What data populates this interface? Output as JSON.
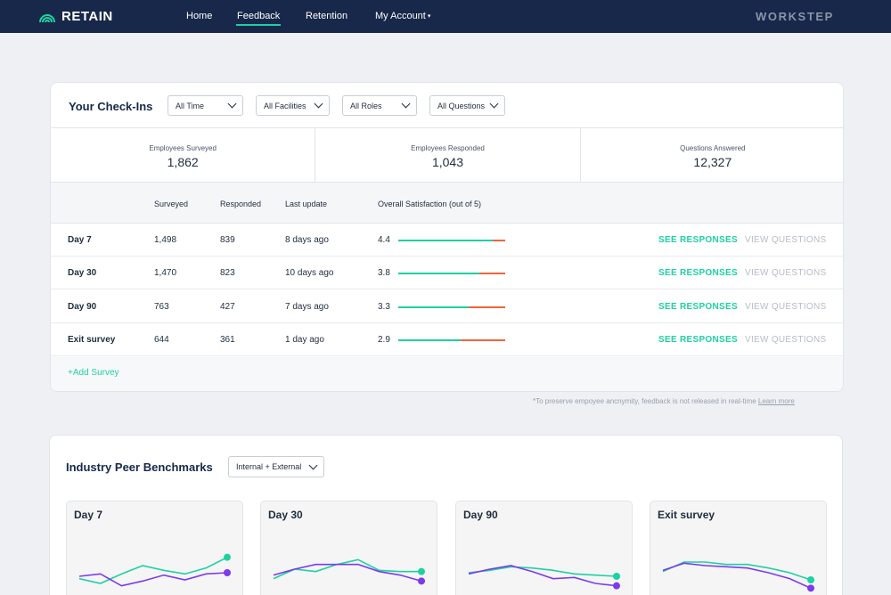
{
  "nav": {
    "brand": "RETAIN",
    "links": [
      "Home",
      "Feedback",
      "Retention",
      "My Account"
    ],
    "active": "Feedback",
    "partner": "WORKSTEP"
  },
  "checkins": {
    "title": "Your Check-Ins",
    "filters": [
      "All Time",
      "All Facilities",
      "All Roles",
      "All Questions"
    ],
    "stats": [
      {
        "label": "Employees Surveyed",
        "value": "1,862"
      },
      {
        "label": "Employees Responded",
        "value": "1,043"
      },
      {
        "label": "Questions Answered",
        "value": "12,327"
      }
    ],
    "columns": [
      "Surveyed",
      "Responded",
      "Last update",
      "Overall Satisfaction (out of 5)"
    ],
    "rows": [
      {
        "name": "Day 7",
        "surveyed": "1,498",
        "responded": "839",
        "updated": "8 days ago",
        "score": "4.4",
        "score_value": 4.4
      },
      {
        "name": "Day 30",
        "surveyed": "1,470",
        "responded": "823",
        "updated": "10 days ago",
        "score": "3.8",
        "score_value": 3.8
      },
      {
        "name": "Day 90",
        "surveyed": "763",
        "responded": "427",
        "updated": "7 days ago",
        "score": "3.3",
        "score_value": 3.3
      },
      {
        "name": "Exit survey",
        "surveyed": "644",
        "responded": "361",
        "updated": "1 day ago",
        "score": "2.9",
        "score_value": 2.9
      }
    ],
    "see_responses": "SEE RESPONSES",
    "view_questions": "VIEW QUESTIONS",
    "add_survey": "+Add Survey",
    "footnote": "*To preserve empoyee ancnymity, feedback is not released in real-time",
    "footnote_link": "Learn more"
  },
  "benchmarks": {
    "title": "Industry Peer Benchmarks",
    "filter": "Internal + External",
    "colors": {
      "internal": "#1dd1a1",
      "external": "#7c3aed",
      "satisfied": "#1dd1a1",
      "unsatisfied": "#f0643c"
    },
    "charts": [
      {
        "title": "Day 7",
        "green": [
          2.0,
          1.6,
          2.4,
          3.1,
          2.7,
          2.4,
          2.9,
          3.8
        ],
        "purple": [
          2.2,
          2.4,
          1.4,
          1.8,
          2.3,
          1.9,
          2.4,
          2.5
        ]
      },
      {
        "title": "Day 30",
        "green": [
          2.0,
          2.8,
          2.6,
          3.2,
          3.6,
          2.7,
          2.6,
          2.6
        ],
        "purple": [
          2.3,
          2.8,
          3.2,
          3.2,
          3.2,
          2.6,
          2.3,
          1.8
        ]
      },
      {
        "title": "Day 90",
        "green": [
          2.5,
          2.7,
          3.0,
          2.9,
          2.7,
          2.4,
          2.3,
          2.2
        ],
        "purple": [
          2.4,
          2.8,
          3.1,
          2.6,
          2.0,
          2.1,
          1.6,
          1.4
        ]
      },
      {
        "title": "Exit survey",
        "green": [
          2.6,
          3.4,
          3.4,
          3.2,
          3.2,
          2.9,
          2.5,
          1.9
        ],
        "purple": [
          2.7,
          3.3,
          3.1,
          3.0,
          2.9,
          2.5,
          2.0,
          1.2
        ]
      }
    ]
  }
}
